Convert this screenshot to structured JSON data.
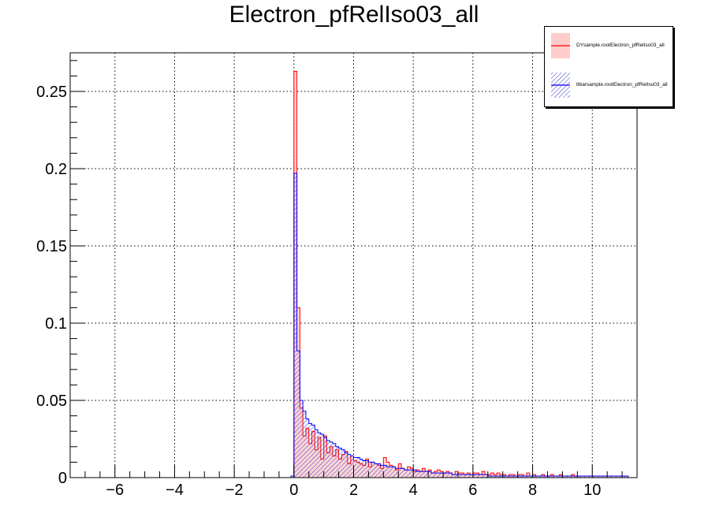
{
  "chart_data": {
    "type": "histogram",
    "title": "Electron_pfRelIso03_all",
    "xlabel": "",
    "ylabel": "",
    "xlim": [
      -7.5,
      11.5
    ],
    "ylim": [
      0,
      0.275
    ],
    "grid": true,
    "grid_style": "dotted",
    "legend_position": "top-right",
    "x_ticks": [
      -6,
      -4,
      -2,
      0,
      2,
      4,
      6,
      8,
      10
    ],
    "x_tick_labels": [
      "−6",
      "−4",
      "−2",
      "0",
      "2",
      "4",
      "6",
      "8",
      "10"
    ],
    "y_ticks": [
      0,
      0.05,
      0.1,
      0.15,
      0.2,
      0.25
    ],
    "y_tick_labels": [
      "0",
      "0.05",
      "0.1",
      "0.15",
      "0.2",
      "0.25"
    ],
    "bin_width": 0.1,
    "series": [
      {
        "name": "DYsample.rootElectron_pfRelIso03_all",
        "color": "#ff0000",
        "fill": "#ffcccc",
        "fill_style": "solid",
        "bin_start": -0.1,
        "values": [
          0.001,
          0.263,
          0.11,
          0.045,
          0.027,
          0.032,
          0.022,
          0.03,
          0.018,
          0.026,
          0.012,
          0.027,
          0.016,
          0.02,
          0.014,
          0.018,
          0.012,
          0.015,
          0.017,
          0.009,
          0.014,
          0.011,
          0.01,
          0.009,
          0.008,
          0.012,
          0.007,
          0.01,
          0.009,
          0.008,
          0.006,
          0.013,
          0.01,
          0.008,
          0.007,
          0.005,
          0.009,
          0.006,
          0.005,
          0.007,
          0.006,
          0.004,
          0.005,
          0.004,
          0.006,
          0.004,
          0.005,
          0.003,
          0.004,
          0.005,
          0.004,
          0.003,
          0.004,
          0.003,
          0.002,
          0.004,
          0.003,
          0.003,
          0.002,
          0.003,
          0.002,
          0.003,
          0.003,
          0.002,
          0.004,
          0.002,
          0.002,
          0.003,
          0.002,
          0.003,
          0.002,
          0.002,
          0.001,
          0.002,
          0.002,
          0.001,
          0.002,
          0.002,
          0.001,
          0.003,
          0.001,
          0.002,
          0.001,
          0.001,
          0.002,
          0.001,
          0.001,
          0.002,
          0.001,
          0.001,
          0.002,
          0.001,
          0.001,
          0.001,
          0.002,
          0.001,
          0.001,
          0.001,
          0.001,
          0.001,
          0.001,
          0.001,
          0.001,
          0.001,
          0.001,
          0.001,
          0.001,
          0.001,
          0.001,
          0.001,
          0.001,
          0.001,
          0.001
        ]
      },
      {
        "name": "ttbarsample.rootElectron_pfRelIso03_all",
        "color": "#0000ff",
        "fill": "#3333cc",
        "fill_style": "hatched",
        "bin_start": -0.1,
        "values": [
          0.001,
          0.197,
          0.082,
          0.05,
          0.043,
          0.038,
          0.035,
          0.034,
          0.031,
          0.029,
          0.028,
          0.026,
          0.024,
          0.023,
          0.022,
          0.02,
          0.019,
          0.018,
          0.016,
          0.015,
          0.014,
          0.013,
          0.013,
          0.012,
          0.011,
          0.011,
          0.01,
          0.01,
          0.009,
          0.009,
          0.008,
          0.008,
          0.007,
          0.007,
          0.007,
          0.006,
          0.006,
          0.006,
          0.005,
          0.005,
          0.005,
          0.005,
          0.004,
          0.004,
          0.004,
          0.004,
          0.004,
          0.003,
          0.003,
          0.003,
          0.003,
          0.003,
          0.003,
          0.003,
          0.002,
          0.002,
          0.002,
          0.002,
          0.002,
          0.002,
          0.002,
          0.002,
          0.002,
          0.002,
          0.002,
          0.002,
          0.001,
          0.001,
          0.001,
          0.001,
          0.001,
          0.001,
          0.001,
          0.001,
          0.001,
          0.001,
          0.001,
          0.001,
          0.001,
          0.001,
          0.001,
          0.001,
          0.001,
          0.001,
          0.001,
          0.001,
          0.001,
          0.001,
          0.001,
          0.001,
          0.001,
          0.001,
          0.001,
          0.001,
          0.001,
          0.001,
          0.001,
          0.001,
          0.001,
          0.001,
          0.001,
          0.001,
          0.001,
          0.001,
          0.001,
          0.001,
          0.001,
          0.001,
          0.001,
          0.001,
          0.001,
          0.001,
          0.001
        ]
      }
    ]
  }
}
